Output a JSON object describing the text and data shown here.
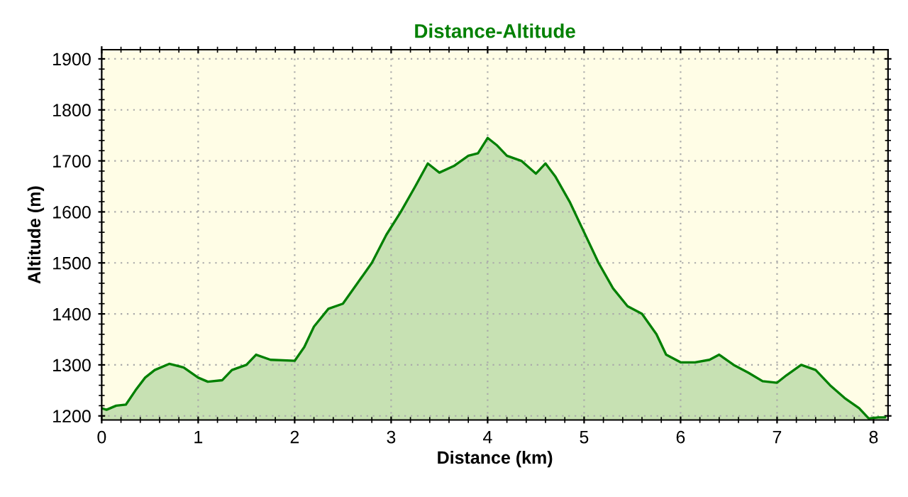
{
  "chart_data": {
    "type": "area",
    "title": "Distance-Altitude",
    "xlabel": "Distance (km)",
    "ylabel": "Altitude (m)",
    "x": [
      0,
      0.05,
      0.15,
      0.25,
      0.35,
      0.45,
      0.55,
      0.7,
      0.85,
      1.0,
      1.1,
      1.25,
      1.35,
      1.5,
      1.6,
      1.75,
      2.0,
      2.1,
      2.2,
      2.35,
      2.5,
      2.65,
      2.8,
      2.95,
      3.1,
      3.25,
      3.38,
      3.5,
      3.65,
      3.8,
      3.9,
      4.0,
      4.1,
      4.2,
      4.35,
      4.5,
      4.6,
      4.7,
      4.85,
      5.0,
      5.15,
      5.3,
      5.45,
      5.6,
      5.75,
      5.85,
      6.0,
      6.15,
      6.3,
      6.4,
      6.55,
      6.7,
      6.85,
      7.0,
      7.1,
      7.25,
      7.4,
      7.55,
      7.7,
      7.85,
      7.95,
      8.05,
      8.12
    ],
    "series": [
      {
        "color": "#008000",
        "values": [
          1215,
          1212,
          1220,
          1222,
          1250,
          1275,
          1290,
          1302,
          1295,
          1275,
          1267,
          1270,
          1290,
          1300,
          1320,
          1310,
          1308,
          1335,
          1375,
          1410,
          1420,
          1460,
          1500,
          1555,
          1600,
          1650,
          1695,
          1677,
          1690,
          1710,
          1715,
          1745,
          1730,
          1710,
          1700,
          1675,
          1695,
          1670,
          1620,
          1560,
          1500,
          1450,
          1415,
          1400,
          1360,
          1320,
          1305,
          1305,
          1310,
          1320,
          1300,
          1285,
          1268,
          1265,
          1280,
          1300,
          1290,
          1260,
          1235,
          1215,
          1195,
          1197,
          1197
        ]
      }
    ],
    "xlim": [
      0,
      8.15
    ],
    "ylim": [
      1192,
      1918
    ],
    "xticks": [
      0,
      1,
      2,
      3,
      4,
      5,
      6,
      7,
      8
    ],
    "yticks": [
      1200,
      1300,
      1400,
      1500,
      1600,
      1700,
      1800,
      1900
    ],
    "grid": true,
    "legend": false
  }
}
